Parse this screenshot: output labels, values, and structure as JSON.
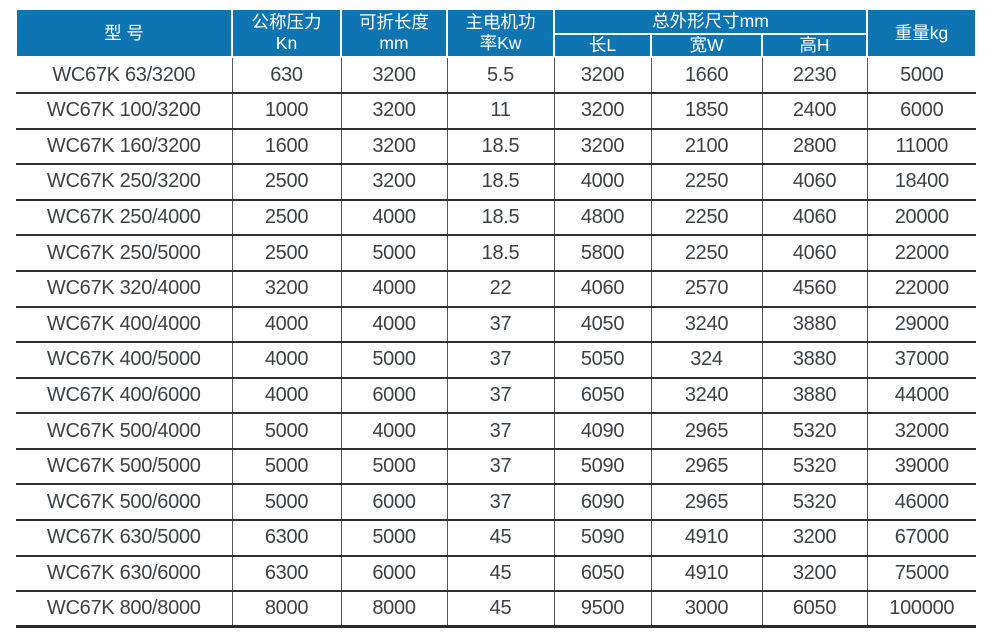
{
  "table": {
    "title": "WC67K press brake specification table",
    "headers": {
      "model": "型 号",
      "pressure_line1": "公称压力",
      "pressure_line2": "Kn",
      "length_line1": "可折长度",
      "length_line2": "mm",
      "power_line1": "主电机功",
      "power_line2": "率Kw",
      "dimensions_group": "总外形尺寸mm",
      "dim_length": "长L",
      "dim_width": "宽W",
      "dim_height": "高H",
      "weight": "重量kg"
    },
    "column_keys": [
      "model",
      "pressure-kn",
      "length-mm",
      "power-kw",
      "dim-l",
      "dim-w",
      "dim-h",
      "weight-kg"
    ],
    "rows": [
      [
        "WC67K 63/3200",
        "630",
        "3200",
        "5.5",
        "3200",
        "1660",
        "2230",
        "5000"
      ],
      [
        "WC67K 100/3200",
        "1000",
        "3200",
        "11",
        "3200",
        "1850",
        "2400",
        "6000"
      ],
      [
        "WC67K 160/3200",
        "1600",
        "3200",
        "18.5",
        "3200",
        "2100",
        "2800",
        "11000"
      ],
      [
        "WC67K 250/3200",
        "2500",
        "3200",
        "18.5",
        "4000",
        "2250",
        "4060",
        "18400"
      ],
      [
        "WC67K 250/4000",
        "2500",
        "4000",
        "18.5",
        "4800",
        "2250",
        "4060",
        "20000"
      ],
      [
        "WC67K 250/5000",
        "2500",
        "5000",
        "18.5",
        "5800",
        "2250",
        "4060",
        "22000"
      ],
      [
        "WC67K 320/4000",
        "3200",
        "4000",
        "22",
        "4060",
        "2570",
        "4560",
        "22000"
      ],
      [
        "WC67K 400/4000",
        "4000",
        "4000",
        "37",
        "4050",
        "3240",
        "3880",
        "29000"
      ],
      [
        "WC67K 400/5000",
        "4000",
        "5000",
        "37",
        "5050",
        "324",
        "3880",
        "37000"
      ],
      [
        "WC67K 400/6000",
        "4000",
        "6000",
        "37",
        "6050",
        "3240",
        "3880",
        "44000"
      ],
      [
        "WC67K 500/4000",
        "5000",
        "4000",
        "37",
        "4090",
        "2965",
        "5320",
        "32000"
      ],
      [
        "WC67K 500/5000",
        "5000",
        "5000",
        "37",
        "5090",
        "2965",
        "5320",
        "39000"
      ],
      [
        "WC67K 500/6000",
        "5000",
        "6000",
        "37",
        "6090",
        "2965",
        "5320",
        "46000"
      ],
      [
        "WC67K 630/5000",
        "6300",
        "5000",
        "45",
        "5090",
        "4910",
        "3200",
        "67000"
      ],
      [
        "WC67K 630/6000",
        "6300",
        "6000",
        "45",
        "6050",
        "4910",
        "3200",
        "75000"
      ],
      [
        "WC67K 800/8000",
        "8000",
        "8000",
        "45",
        "9500",
        "3000",
        "6050",
        "100000"
      ]
    ]
  },
  "colors": {
    "header_bg": "#0e74b2",
    "header_text": "#ffffff",
    "body_text": "#3d4145",
    "grid_horizontal": "#2f2f2f",
    "grid_vertical": "#565656"
  }
}
